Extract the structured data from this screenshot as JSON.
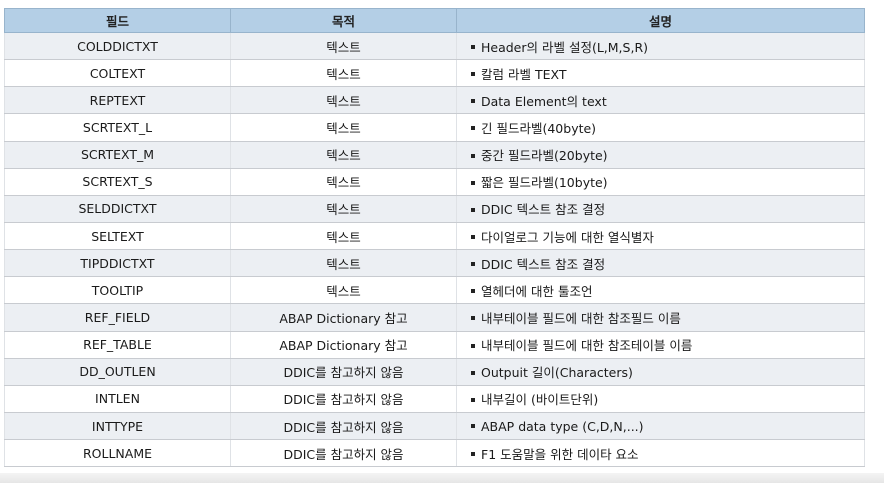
{
  "headers": {
    "field": "필드",
    "purpose": "목적",
    "description": "설명"
  },
  "rows": [
    {
      "field": "COLDDICTXT",
      "purpose": "텍스트",
      "description": "Header의 라벨 설정(L,M,S,R)"
    },
    {
      "field": "COLTEXT",
      "purpose": "텍스트",
      "description": "칼럼 라벨 TEXT"
    },
    {
      "field": "REPTEXT",
      "purpose": "텍스트",
      "description": "Data Element의 text"
    },
    {
      "field": "SCRTEXT_L",
      "purpose": "텍스트",
      "description": "긴 필드라벨(40byte)"
    },
    {
      "field": "SCRTEXT_M",
      "purpose": "텍스트",
      "description": "중간 필드라벨(20byte)"
    },
    {
      "field": "SCRTEXT_S",
      "purpose": "텍스트",
      "description": "짧은 필드라벨(10byte)"
    },
    {
      "field": "SELDDICTXT",
      "purpose": "텍스트",
      "description": "DDIC 텍스트 참조 결정"
    },
    {
      "field": "SELTEXT",
      "purpose": "텍스트",
      "description": "다이얼로그 기능에 대한 열식별자"
    },
    {
      "field": "TIPDDICTXT",
      "purpose": "텍스트",
      "description": "DDIC 텍스트 참조 결정"
    },
    {
      "field": "TOOLTIP",
      "purpose": "텍스트",
      "description": "열헤더에 대한 툴조언"
    },
    {
      "field": "REF_FIELD",
      "purpose": "ABAP Dictionary 참고",
      "description": "내부테이블 필드에 대한 참조필드 이름"
    },
    {
      "field": "REF_TABLE",
      "purpose": "ABAP Dictionary 참고",
      "description": "내부테이블 필드에 대한 참조테이블 이름"
    },
    {
      "field": "DD_OUTLEN",
      "purpose": "DDIC를 참고하지 않음",
      "description": "Outpuit 길이(Characters)"
    },
    {
      "field": "INTLEN",
      "purpose": "DDIC를 참고하지 않음",
      "description": "내부길이 (바이트단위)"
    },
    {
      "field": "INTTYPE",
      "purpose": "DDIC를 참고하지 않음",
      "description": "ABAP data type (C,D,N,...)"
    },
    {
      "field": "ROLLNAME",
      "purpose": "DDIC를 참고하지 않음",
      "description": "F1 도움말을 위한 데이타 요소"
    }
  ]
}
